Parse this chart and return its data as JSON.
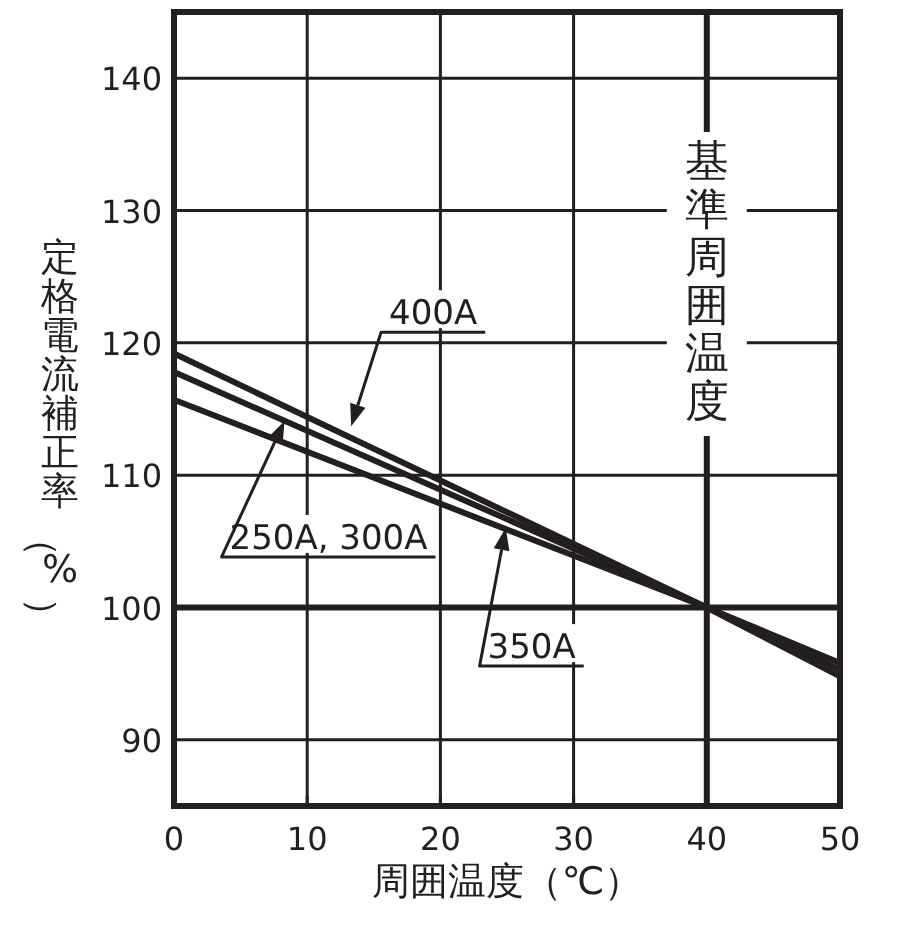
{
  "chart_data": {
    "type": "line",
    "xlabel": "周囲温度（℃）",
    "ylabel": "定格電流補正率（%）",
    "x": [
      0,
      40,
      50
    ],
    "series": [
      {
        "color": "#231f20",
        "values": [
          119.2,
          100,
          94.8
        ]
      },
      {
        "color": "#231f20",
        "values": [
          117.8,
          100,
          95.3
        ]
      },
      {
        "color": "#231f20",
        "values": [
          115.7,
          100,
          95.8
        ]
      }
    ],
    "xlim": [
      0,
      50
    ],
    "ylim": [
      85,
      145
    ],
    "xticks": [
      0,
      10,
      20,
      30,
      40,
      50
    ],
    "yticks": [
      90,
      100,
      110,
      120,
      130,
      140
    ],
    "grid": true,
    "ref_lines": [
      {
        "axis": "x",
        "value": 40,
        "label": "基準周囲温度"
      },
      {
        "axis": "y",
        "value": 100
      }
    ],
    "annotations": [
      {
        "text": "400A",
        "x": 13.3,
        "y": 113.7
      },
      {
        "text": "250A, 300A",
        "x": 8.3,
        "y": 114.1
      },
      {
        "text": "350A",
        "x": 24.9,
        "y": 106
      }
    ]
  }
}
